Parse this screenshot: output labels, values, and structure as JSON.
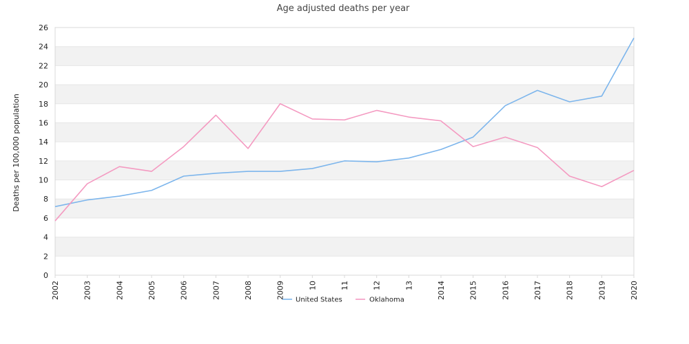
{
  "chart_data": {
    "type": "line",
    "title": "Age adjusted deaths per year",
    "xlabel": "",
    "ylabel": "Deaths per 100,000 population",
    "ylim": [
      0,
      26
    ],
    "y_ticks": [
      0,
      2,
      4,
      6,
      8,
      10,
      12,
      14,
      16,
      18,
      20,
      22,
      24,
      26
    ],
    "grid": "alternating horizontal bands",
    "legend_position": "bottom-center",
    "x": [
      "2002",
      "2003",
      "2004",
      "2005",
      "2006",
      "2007",
      "2008",
      "2009",
      "2010",
      "2011",
      "2012",
      "2013",
      "2014",
      "2015",
      "2016",
      "2017",
      "2018",
      "2019",
      "2020"
    ],
    "x_tick_labels": [
      "2002",
      "2003",
      "2004",
      "2005",
      "2006",
      "2007",
      "2008",
      "2009",
      "10",
      "11",
      "12",
      "13",
      "2014",
      "2015",
      "2016",
      "2017",
      "2018",
      "2019",
      "2020"
    ],
    "series": [
      {
        "name": "United States",
        "color": "#7cb5ec",
        "values": [
          7.2,
          7.9,
          8.3,
          8.9,
          10.4,
          10.7,
          10.9,
          10.9,
          11.2,
          12.0,
          11.9,
          12.3,
          13.2,
          14.5,
          17.8,
          19.4,
          18.2,
          18.8,
          24.9
        ]
      },
      {
        "name": "Oklahoma",
        "color": "#f49ac1",
        "values": [
          5.7,
          9.6,
          11.4,
          10.9,
          13.5,
          16.8,
          13.3,
          18.0,
          16.4,
          16.3,
          17.3,
          16.6,
          16.2,
          13.5,
          14.5,
          13.4,
          10.4,
          9.3,
          11.0
        ]
      }
    ]
  }
}
